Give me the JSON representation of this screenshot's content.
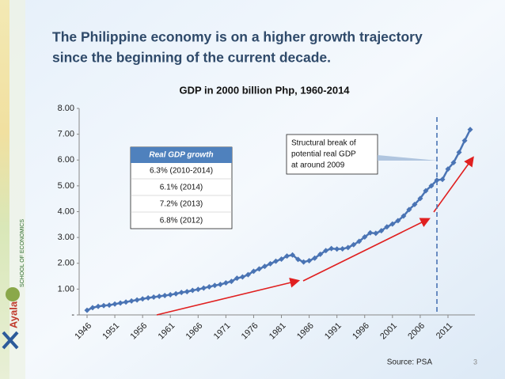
{
  "page": {
    "title_lines": [
      "The Philippine economy is on a higher growth trajectory",
      "since the beginning of the current decade."
    ],
    "source": "Source: PSA",
    "page_number": "3",
    "logo_text": "Ayala",
    "school_text": "SCHOOL OF ECONOMICS"
  },
  "chart_data": {
    "type": "line",
    "title": "GDP in 2000 billion Php, 1960-2014",
    "categories": [
      "1946",
      null,
      null,
      null,
      null,
      "1951",
      null,
      null,
      null,
      null,
      "1956",
      null,
      null,
      null,
      null,
      "1961",
      null,
      null,
      null,
      null,
      "1966",
      null,
      null,
      null,
      null,
      "1971",
      null,
      null,
      null,
      null,
      "1976",
      null,
      null,
      null,
      null,
      "1981",
      null,
      null,
      null,
      null,
      "1986",
      null,
      null,
      null,
      null,
      "1991",
      null,
      null,
      null,
      null,
      "1996",
      null,
      null,
      null,
      null,
      "2001",
      null,
      null,
      null,
      null,
      "2006",
      null,
      null,
      null,
      null,
      "2011",
      null,
      null,
      null,
      null
    ],
    "series": [
      {
        "name": "GDP",
        "color": "#4a74b4",
        "values": [
          0.18,
          0.28,
          0.33,
          0.36,
          0.38,
          0.42,
          0.46,
          0.5,
          0.54,
          0.58,
          0.62,
          0.66,
          0.69,
          0.72,
          0.75,
          0.78,
          0.82,
          0.87,
          0.9,
          0.95,
          0.99,
          1.04,
          1.09,
          1.14,
          1.18,
          1.24,
          1.3,
          1.42,
          1.47,
          1.56,
          1.69,
          1.78,
          1.88,
          1.98,
          2.08,
          2.16,
          2.28,
          2.32,
          2.15,
          2.05,
          2.1,
          2.2,
          2.35,
          2.49,
          2.57,
          2.55,
          2.56,
          2.61,
          2.72,
          2.85,
          3.02,
          3.18,
          3.16,
          3.26,
          3.41,
          3.52,
          3.65,
          3.83,
          4.08,
          4.28,
          4.51,
          4.81,
          5.0,
          5.22,
          5.25,
          5.65,
          5.9,
          6.3,
          6.75,
          7.18
        ]
      }
    ],
    "ylim": [
      0,
      8
    ],
    "yticks": [
      {
        "value": 0,
        "label": "-"
      },
      {
        "value": 1,
        "label": "1.00"
      },
      {
        "value": 2,
        "label": "2.00"
      },
      {
        "value": 3,
        "label": "3.00"
      },
      {
        "value": 4,
        "label": "4.00"
      },
      {
        "value": 5,
        "label": "5.00"
      },
      {
        "value": 6,
        "label": "6.00"
      },
      {
        "value": 7,
        "label": "7.00"
      },
      {
        "value": 8,
        "label": "8.00"
      }
    ],
    "grid": false,
    "annotation_lines": [
      "Structural break of",
      "potential real GDP",
      "at around 2009"
    ],
    "table": {
      "header": "Real GDP growth",
      "rows": [
        "6.3% (2010-2014)",
        "6.1% (2014)",
        "7.2% (2013)",
        "6.8% (2012)"
      ]
    }
  }
}
